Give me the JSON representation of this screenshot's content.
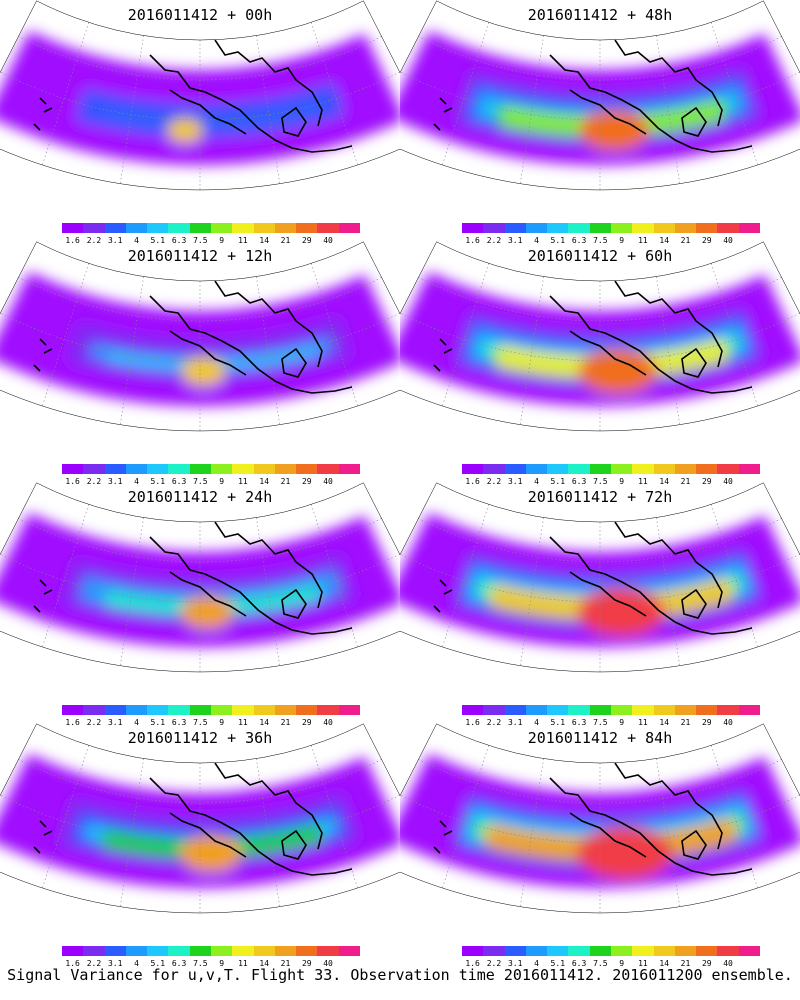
{
  "panels": [
    {
      "title": "2016011412 + 00h",
      "hour": 0
    },
    {
      "title": "2016011412 + 48h",
      "hour": 48
    },
    {
      "title": "2016011412 + 12h",
      "hour": 12
    },
    {
      "title": "2016011412 + 60h",
      "hour": 60
    },
    {
      "title": "2016011412 + 24h",
      "hour": 24
    },
    {
      "title": "2016011412 + 72h",
      "hour": 72
    },
    {
      "title": "2016011412 + 36h",
      "hour": 36
    },
    {
      "title": "2016011412 + 84h",
      "hour": 84
    }
  ],
  "colorbar": {
    "labels": [
      "1.6",
      "2.2",
      "3.1",
      "4",
      "5.1",
      "6.3",
      "7.5",
      "9",
      "11",
      "14",
      "21",
      "29",
      "40"
    ],
    "colors": [
      "#9b00ff",
      "#7a2cf0",
      "#2b5cff",
      "#1e9bff",
      "#1ec8ff",
      "#1ef0c8",
      "#1ed21e",
      "#8cf01e",
      "#f0f01e",
      "#f0c81e",
      "#f0a01e",
      "#f06e1e",
      "#f03c46",
      "#f01e8c"
    ]
  },
  "footer": "Signal Variance for u,v,T. Flight 33. Observation time 2016011412. 2016011200 ensemble."
}
